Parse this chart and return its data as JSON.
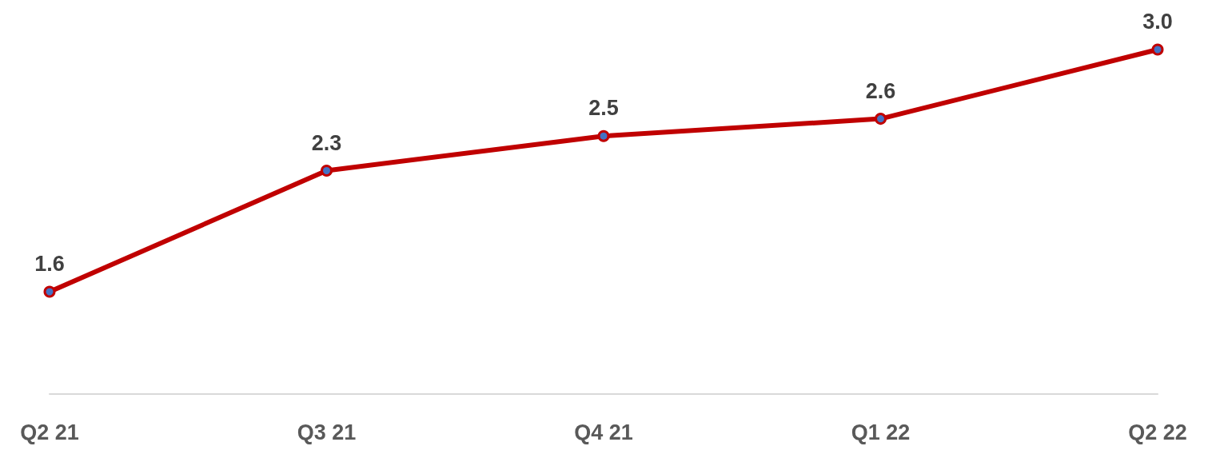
{
  "chart_data": {
    "type": "line",
    "categories": [
      "Q2 21",
      "Q3 21",
      "Q4 21",
      "Q1 22",
      "Q2 22"
    ],
    "series": [
      {
        "color": "#c00000",
        "values": [
          1.6,
          2.3,
          2.5,
          2.6,
          3.0
        ],
        "value_labels": [
          "1.6",
          "2.3",
          "2.5",
          "2.6",
          "3.0"
        ]
      }
    ],
    "marker": "circle",
    "line_style": "solid",
    "tick_labels": "x"
  }
}
